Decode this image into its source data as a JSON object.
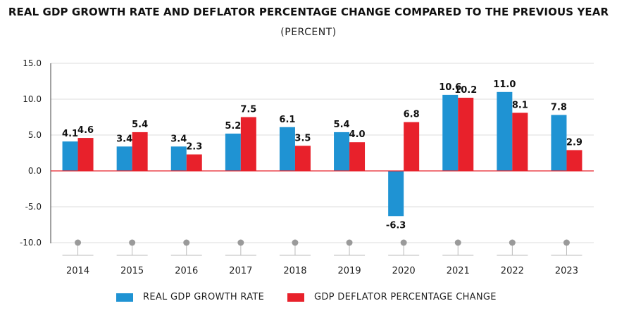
{
  "title": "REAL GDP GROWTH RATE AND DEFLATOR PERCENTAGE CHANGE COMPARED TO THE PREVIOUS YEAR",
  "subtitle": "(PERCENT)",
  "colors": {
    "real_gdp": "#1f93d3",
    "deflator": "#e8212b",
    "zero_line": "#e8212b",
    "grid": "#dddddd",
    "marker": "#9a9a9a"
  },
  "chart_data": {
    "type": "bar",
    "categories": [
      "2014",
      "2015",
      "2016",
      "2017",
      "2018",
      "2019",
      "2020",
      "2021",
      "2022",
      "2023"
    ],
    "series": [
      {
        "name": "REAL GDP GROWTH RATE",
        "values": [
          4.1,
          3.4,
          3.4,
          5.2,
          6.1,
          5.4,
          -6.3,
          10.6,
          11.0,
          7.8
        ],
        "labels": [
          "4.1",
          "3.4",
          "3.4",
          "5.2",
          "6.1",
          "5.4",
          "-6.3",
          "10.6",
          "11.0",
          "7.8"
        ]
      },
      {
        "name": "GDP DEFLATOR PERCENTAGE CHANGE",
        "values": [
          4.6,
          5.4,
          2.3,
          7.5,
          3.5,
          4.0,
          6.8,
          10.2,
          8.1,
          2.9
        ],
        "labels": [
          "4.6",
          "5.4",
          "2.3",
          "7.5",
          "3.5",
          "4.0",
          "6.8",
          "10.2",
          "8.1",
          "2.9"
        ]
      }
    ],
    "ylim": [
      -10,
      15
    ],
    "yticks": [
      "-10.0",
      "-5.0",
      "0.0",
      "5.0",
      "10.0",
      "15.0"
    ],
    "ytick_values": [
      -10,
      -5,
      0,
      5,
      10,
      15
    ],
    "grid": true,
    "legend": "bottom"
  }
}
